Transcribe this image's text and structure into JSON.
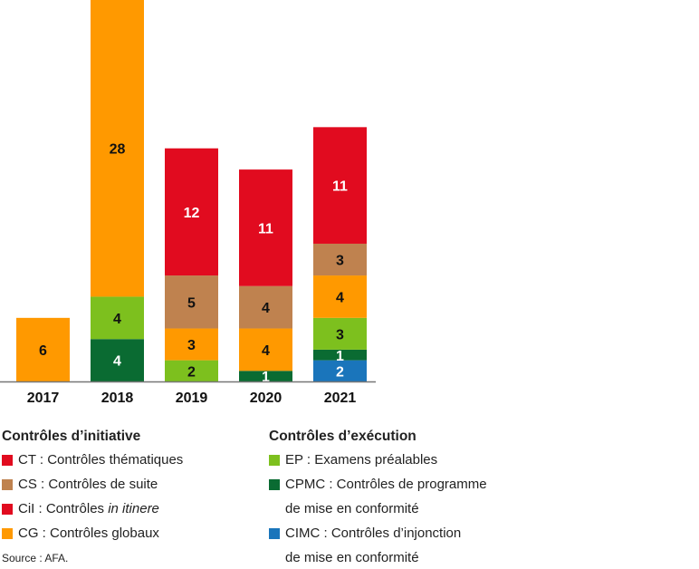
{
  "chart_data": {
    "type": "bar",
    "stacked": true,
    "categories": [
      "2017",
      "2018",
      "2019",
      "2020",
      "2021"
    ],
    "ylim": [
      0,
      36
    ],
    "grid": false,
    "series": [
      {
        "name": "CIMC",
        "color": "#1a75bb",
        "label_color": "#ffffff",
        "values": [
          0,
          0,
          0,
          0,
          2
        ]
      },
      {
        "name": "CPMC",
        "color": "#0a6b32",
        "label_color": "#ffffff",
        "values": [
          0,
          4,
          0,
          1,
          1
        ]
      },
      {
        "name": "EP",
        "color": "#7dc01e",
        "label_color": "#111111",
        "values": [
          0,
          4,
          2,
          0,
          3
        ]
      },
      {
        "name": "CG",
        "color": "#ff9900",
        "label_color": "#111111",
        "values": [
          6,
          28,
          3,
          4,
          4
        ]
      },
      {
        "name": "CS",
        "color": "#bf824f",
        "label_color": "#111111",
        "values": [
          0,
          0,
          5,
          4,
          3
        ]
      },
      {
        "name": "CT",
        "color": "#e10b1f",
        "label_color": "#ffffff",
        "values": [
          0,
          0,
          12,
          11,
          11
        ]
      }
    ]
  },
  "legend": {
    "initiative": {
      "title": "Contrôles d’initiative",
      "items": [
        {
          "color": "#e10b1f",
          "code": "CT : Contrôles ",
          "text": "thématiques",
          "italic": false
        },
        {
          "color": "#bf824f",
          "code": "CS : Contrôles ",
          "text": "de suite",
          "italic": false
        },
        {
          "color": "#e10b1f",
          "code": "CiI : Contrôles ",
          "text": "in itinere",
          "italic": true
        },
        {
          "color": "#ff9900",
          "code": "CG : Contrôles ",
          "text": "globaux",
          "italic": false
        }
      ]
    },
    "execution": {
      "title": "Contrôles d’exécution",
      "items": [
        {
          "color": "#7dc01e",
          "text": "EP : Examens préalables",
          "cont": ""
        },
        {
          "color": "#0a6b32",
          "text": "CPMC : Contrôles de programme",
          "cont": "de mise en conformité"
        },
        {
          "color": "#1a75bb",
          "text": "CIMC : Contrôles d’injonction",
          "cont": "de mise en conformité"
        }
      ]
    }
  },
  "source": "Source : AFA."
}
